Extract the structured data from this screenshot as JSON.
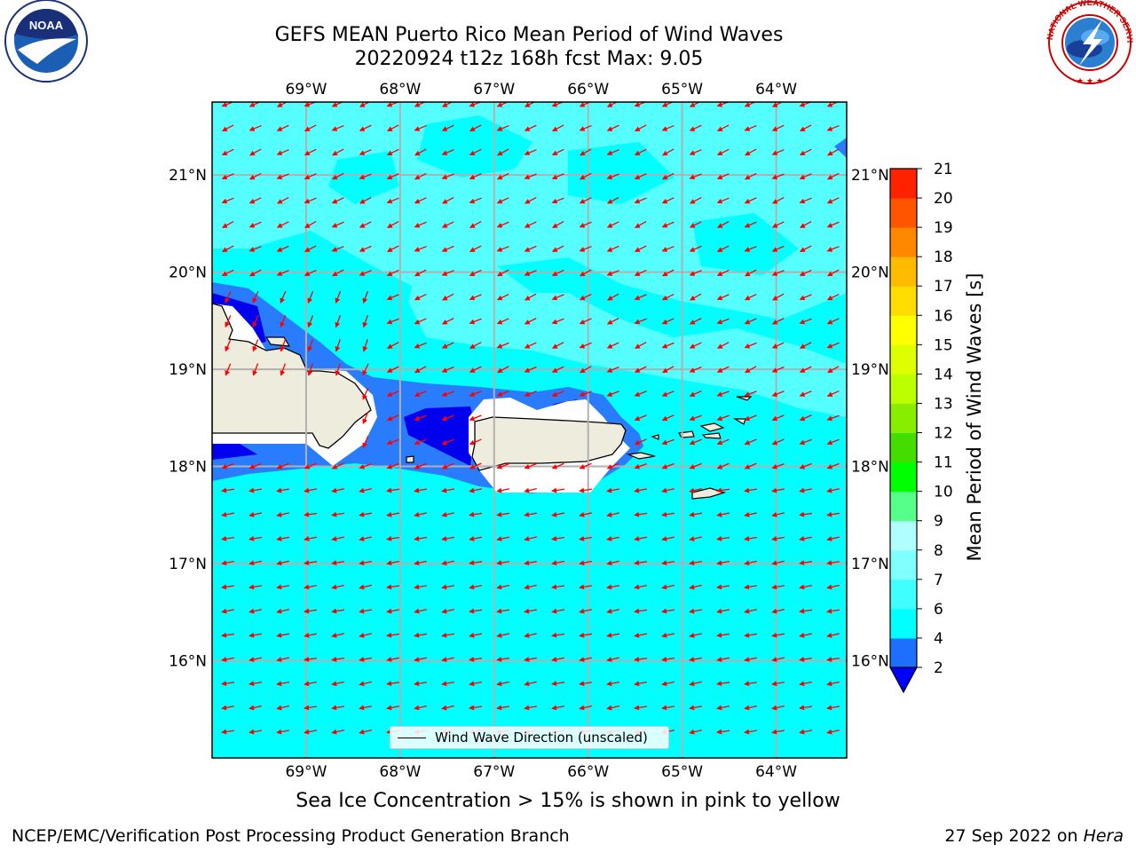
{
  "title": {
    "line1": "GEFS MEAN Puerto Rico Mean Period of Wind Waves",
    "line2": "20220924 t12z 168h fcst   Max: 9.05"
  },
  "logos": {
    "left": {
      "icon": "noaa-logo",
      "text": "NOAA"
    },
    "right": {
      "icon": "nws-logo",
      "ring_text": "NATIONAL WEATHER SERVICE"
    }
  },
  "map": {
    "lon_ticks": [
      "69°W",
      "68°W",
      "67°W",
      "66°W",
      "65°W",
      "64°W"
    ],
    "lat_ticks": [
      "21°N",
      "20°N",
      "19°N",
      "18°N",
      "17°N",
      "16°N"
    ],
    "lon_values": [
      -69,
      -68,
      -67,
      -66,
      -65,
      -64
    ],
    "lat_values": [
      21,
      20,
      19,
      18,
      17,
      16
    ],
    "extent": {
      "lon_min": -70,
      "lon_max": -63.25,
      "lat_min": 15,
      "lat_max": 21.75
    },
    "legend": "Wind Wave Direction (unscaled)",
    "colors": {
      "ocean": "#00ffff",
      "land": "#eeecdc",
      "arrows": "#ff0000",
      "grid": "#b0b0b0",
      "shelf": "#2a7cff",
      "deep": "#0000ee",
      "light_ocean": "#55ffff"
    }
  },
  "colorbar": {
    "label": "Mean Period of Wind Waves [s]",
    "tick_labels": [
      "2",
      "4",
      "6",
      "7",
      "8",
      "9",
      "10",
      "11",
      "12",
      "13",
      "14",
      "15",
      "16",
      "17",
      "18",
      "19",
      "20",
      "21"
    ],
    "levels": [
      2,
      4,
      6,
      7,
      8,
      9,
      10,
      11,
      12,
      13,
      14,
      15,
      16,
      17,
      18,
      19,
      20,
      21
    ],
    "colors": [
      "#1f6fff",
      "#00ffff",
      "#40ffff",
      "#80ffff",
      "#b0ffff",
      "#55ff88",
      "#00ff00",
      "#44dd00",
      "#88ee00",
      "#bbff00",
      "#ddff00",
      "#ffff00",
      "#ffdd00",
      "#ffbb00",
      "#ff8800",
      "#ff5500",
      "#ff2200",
      "#ff0000"
    ],
    "under_color": "#0000ff"
  },
  "footer": {
    "sea_ice": "Sea Ice Concentration > 15% is shown in pink to yellow",
    "branch": "NCEP/EMC/Verification Post Processing Product Generation Branch",
    "date": "27 Sep 2022 on ",
    "machine": "Hera"
  }
}
